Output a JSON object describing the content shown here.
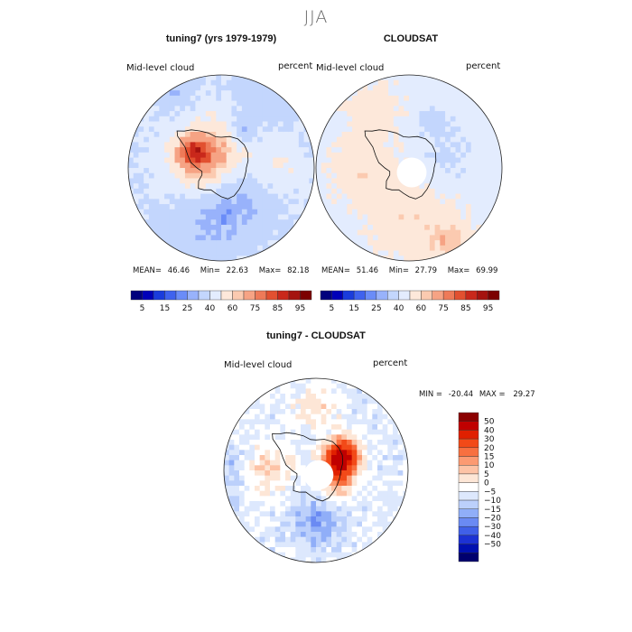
{
  "figure": {
    "season": "JJA"
  },
  "colors": {
    "coast": "#111111",
    "border": "#222222",
    "hole": "#ffffff"
  },
  "chart_data": [
    {
      "type": "heatmap",
      "projection": "south-polar-stereographic",
      "title": "tuning7 (yrs 1979-1979)",
      "variable": "Mid-level cloud",
      "units": "percent",
      "stats": {
        "mean_label": "MEAN=",
        "mean": "46.46",
        "min_label": "Min=",
        "min": "22.63",
        "max_label": "Max=",
        "max": "82.18"
      },
      "field": {
        "base": 40,
        "blobs": [
          {
            "lon": 180,
            "r": 0.2,
            "val": 62,
            "sx": 0.2
          },
          {
            "lon": 150,
            "r": 0.35,
            "val": 66,
            "sx": 0.1
          },
          {
            "lon": 90,
            "r": 0.2,
            "val": 58,
            "sx": 0.25
          },
          {
            "lon": 300,
            "r": 0.3,
            "val": 25,
            "sx": 0.22
          },
          {
            "lon": 250,
            "r": 0.55,
            "val": 30,
            "sx": 0.25
          },
          {
            "lon": 60,
            "r": 0.75,
            "val": 32,
            "sx": 0.2
          },
          {
            "lon": 120,
            "r": 0.95,
            "val": 30,
            "sx": 0.12
          },
          {
            "lon": 0,
            "r": 0.65,
            "val": 50,
            "sx": 0.15
          },
          {
            "lon": 60,
            "r": 0.45,
            "val": 22,
            "sx": 0.08
          }
        ]
      }
    },
    {
      "type": "heatmap",
      "projection": "south-polar-stereographic",
      "title": "CLOUDSAT",
      "variable": "Mid-level cloud",
      "units": "percent",
      "stats": {
        "mean_label": "MEAN=",
        "mean": "51.46",
        "min_label": "Min=",
        "min": "27.79",
        "max_label": "Max=",
        "max": "69.99"
      },
      "missing_pole": true,
      "field": {
        "base": 44,
        "blobs": [
          {
            "lon": 270,
            "r": 0.55,
            "val": 58,
            "sx": 0.3
          },
          {
            "lon": 180,
            "r": 0.55,
            "val": 56,
            "sx": 0.2
          },
          {
            "lon": 120,
            "r": 0.75,
            "val": 55,
            "sx": 0.2
          },
          {
            "lon": 10,
            "r": 0.4,
            "val": 36,
            "sx": 0.15
          },
          {
            "lon": 60,
            "r": 0.55,
            "val": 34,
            "sx": 0.1
          },
          {
            "lon": 300,
            "r": 0.95,
            "val": 58,
            "sx": 0.15
          }
        ]
      },
      "colorbar": {
        "orientation": "horizontal",
        "labels": [
          "5",
          "15",
          "25",
          "40",
          "60",
          "75",
          "85",
          "95"
        ],
        "colors": [
          "#00007d",
          "#0000b9",
          "#1a3cdc",
          "#3f62ee",
          "#6a8cf8",
          "#98b2fb",
          "#c3d6fd",
          "#e3ecfe",
          "#fde8da",
          "#fbcab0",
          "#f6a384",
          "#ee7a58",
          "#e25030",
          "#c9281b",
          "#a5130f",
          "#7c0000"
        ]
      }
    },
    {
      "type": "heatmap",
      "projection": "south-polar-stereographic",
      "title": "tuning7 - CLOUDSAT",
      "variable": "Mid-level cloud",
      "units": "percent",
      "stats": {
        "min_label": "MIN =",
        "min": "-20.44",
        "max_label": "MAX =",
        "max": "29.27"
      },
      "missing_pole": true,
      "field": {
        "base": -6,
        "blobs": [
          {
            "lon": 30,
            "r": 0.35,
            "val": 26,
            "sx": 0.1
          },
          {
            "lon": 20,
            "r": 0.25,
            "val": 20,
            "sx": 0.1
          },
          {
            "lon": 330,
            "r": 0.25,
            "val": 12,
            "sx": 0.1
          },
          {
            "lon": 180,
            "r": 0.55,
            "val": 6,
            "sx": 0.15
          },
          {
            "lon": 270,
            "r": 0.55,
            "val": -18,
            "sx": 0.15
          },
          {
            "lon": 180,
            "r": 0.9,
            "val": -14,
            "sx": 0.15
          },
          {
            "lon": 90,
            "r": 0.7,
            "val": 4,
            "sx": 0.12
          }
        ]
      },
      "colorbar": {
        "orientation": "vertical",
        "labels": [
          "50",
          "40",
          "30",
          "20",
          "15",
          "10",
          "5",
          "0",
          "−5",
          "−10",
          "−15",
          "−20",
          "−30",
          "−40",
          "−50"
        ],
        "colors": [
          "#8b0000",
          "#c00000",
          "#e02000",
          "#f24a18",
          "#f87040",
          "#fc9a72",
          "#fdc3a6",
          "#fde6d6",
          "#ffffff",
          "#dde8fd",
          "#bcd0fb",
          "#90aef8",
          "#6a8af3",
          "#4060e8",
          "#1c32d4",
          "#0010b0",
          "#00006e"
        ]
      }
    }
  ]
}
